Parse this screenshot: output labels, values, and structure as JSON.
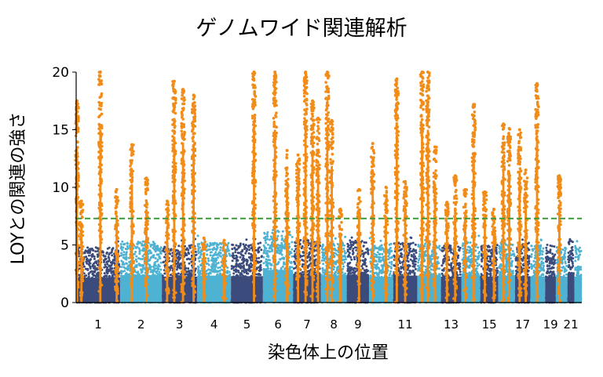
{
  "chart_data": {
    "type": "scatter",
    "subtype": "manhattan",
    "title": "ゲノムワイド関連解析",
    "xlabel": "染色体上の位置",
    "ylabel": "LOYとの関連の強さ",
    "ylim": [
      0,
      20
    ],
    "yticks": [
      "0",
      "5",
      "10",
      "15",
      "20"
    ],
    "significance_threshold": 7.3,
    "colors": {
      "dark": "#3b4b7c",
      "light": "#4eb3d3",
      "significant": "#f28c18",
      "threshold_line": "#3a9a3a",
      "axis": "#000000"
    },
    "chromosomes": [
      {
        "chr": "1",
        "label": "1",
        "weight": 9.5,
        "color": "dark",
        "max": 4.8,
        "peaks": [
          [
            0.02,
            17.5
          ],
          [
            0.12,
            8.8
          ],
          [
            0.55,
            20
          ],
          [
            0.92,
            9.8
          ]
        ]
      },
      {
        "chr": "2",
        "label": "2",
        "weight": 9.0,
        "color": "light",
        "max": 5.3,
        "peaks": [
          [
            0.28,
            13.7
          ],
          [
            0.63,
            10.8
          ]
        ]
      },
      {
        "chr": "3",
        "label": "3",
        "weight": 7.6,
        "color": "dark",
        "max": 5.0,
        "peaks": [
          [
            0.15,
            8.8
          ],
          [
            0.35,
            19.2
          ],
          [
            0.6,
            18.5
          ],
          [
            0.9,
            18.0
          ]
        ]
      },
      {
        "chr": "4",
        "label": "4",
        "weight": 7.3,
        "color": "light",
        "max": 5.2,
        "peaks": [
          [
            0.2,
            5.6
          ],
          [
            0.8,
            5.4
          ]
        ]
      },
      {
        "chr": "5",
        "label": "5",
        "weight": 6.9,
        "color": "dark",
        "max": 5.1,
        "peaks": [
          [
            0.72,
            20
          ]
        ]
      },
      {
        "chr": "6",
        "label": "6",
        "weight": 6.5,
        "color": "light",
        "max": 6.3,
        "peaks": [
          [
            0.4,
            20
          ],
          [
            0.8,
            13.2
          ]
        ]
      },
      {
        "chr": "7",
        "label": "7",
        "weight": 6.0,
        "color": "dark",
        "max": 5.5,
        "peaks": [
          [
            0.18,
            12.8
          ],
          [
            0.45,
            20
          ],
          [
            0.7,
            17.5
          ],
          [
            0.9,
            16.0
          ]
        ]
      },
      {
        "chr": "8",
        "label": "8",
        "weight": 5.6,
        "color": "light",
        "max": 5.2,
        "peaks": [
          [
            0.25,
            20
          ],
          [
            0.42,
            15.8
          ],
          [
            0.75,
            8.1
          ]
        ]
      },
      {
        "chr": "9",
        "label": "9",
        "weight": 4.8,
        "color": "dark",
        "max": 5.4,
        "peaks": [
          [
            0.55,
            9.8
          ]
        ]
      },
      {
        "chr": "10",
        "label": "",
        "weight": 5.2,
        "color": "light",
        "max": 5.0,
        "peaks": [
          [
            0.15,
            13.8
          ],
          [
            0.7,
            10.0
          ]
        ]
      },
      {
        "chr": "11",
        "label": "11",
        "weight": 5.2,
        "color": "dark",
        "max": 5.2,
        "peaks": [
          [
            0.15,
            19.4
          ],
          [
            0.5,
            10.5
          ]
        ]
      },
      {
        "chr": "12",
        "label": "",
        "weight": 5.1,
        "color": "light",
        "max": 5.1,
        "peaks": [
          [
            0.2,
            20
          ],
          [
            0.45,
            20
          ],
          [
            0.75,
            13.5
          ]
        ]
      },
      {
        "chr": "13",
        "label": "13",
        "weight": 4.4,
        "color": "dark",
        "max": 5.0,
        "peaks": [
          [
            0.3,
            8.7
          ],
          [
            0.7,
            11.0
          ]
        ]
      },
      {
        "chr": "14",
        "label": "",
        "weight": 4.1,
        "color": "light",
        "max": 5.3,
        "peaks": [
          [
            0.2,
            9.8
          ],
          [
            0.65,
            17.2
          ]
        ]
      },
      {
        "chr": "15",
        "label": "15",
        "weight": 3.9,
        "color": "dark",
        "max": 5.0,
        "peaks": [
          [
            0.25,
            9.6
          ],
          [
            0.75,
            8.1
          ]
        ]
      },
      {
        "chr": "16",
        "label": "",
        "weight": 3.6,
        "color": "light",
        "max": 5.2,
        "peaks": [
          [
            0.3,
            15.5
          ],
          [
            0.65,
            15.1
          ]
        ]
      },
      {
        "chr": "17",
        "label": "17",
        "weight": 3.3,
        "color": "dark",
        "max": 5.1,
        "peaks": [
          [
            0.3,
            15.0
          ],
          [
            0.7,
            11.5
          ]
        ]
      },
      {
        "chr": "18",
        "label": "",
        "weight": 3.2,
        "color": "light",
        "max": 5.0,
        "peaks": [
          [
            0.45,
            19.0
          ]
        ]
      },
      {
        "chr": "19",
        "label": "19",
        "weight": 2.3,
        "color": "dark",
        "max": 5.0,
        "peaks": []
      },
      {
        "chr": "20",
        "label": "",
        "weight": 2.5,
        "color": "light",
        "max": 5.0,
        "peaks": [
          [
            0.3,
            11.0
          ]
        ]
      },
      {
        "chr": "21",
        "label": "21",
        "weight": 1.5,
        "color": "dark",
        "max": 5.5,
        "peaks": []
      },
      {
        "chr": "22",
        "label": "",
        "weight": 1.6,
        "color": "light",
        "max": 5.0,
        "peaks": []
      }
    ]
  }
}
